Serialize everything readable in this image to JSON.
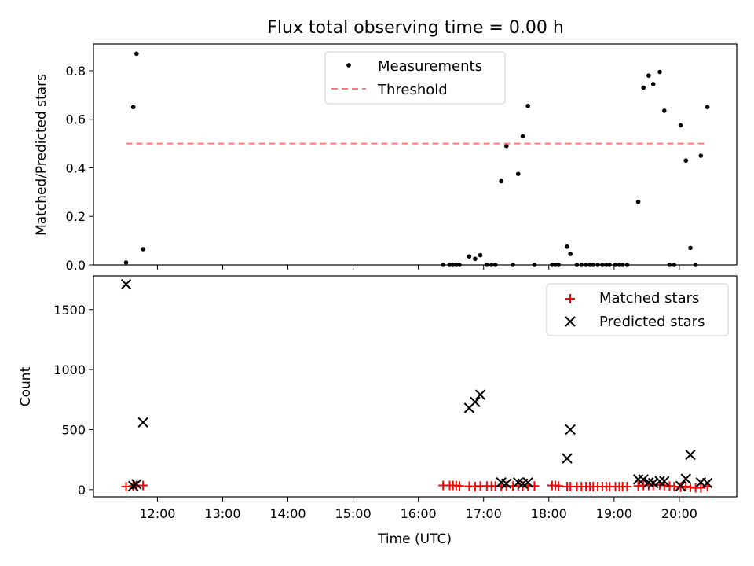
{
  "figure": {
    "title": "Flux total observing time = 0.00 h"
  },
  "chart_data": [
    {
      "type": "scatter",
      "panel": "top",
      "title": "Flux total observing time = 0.00 h",
      "xlabel": "",
      "ylabel": "Matched/Predicted stars",
      "xlim": [
        11.02,
        20.88
      ],
      "ylim": [
        0.0,
        0.91
      ],
      "yticks": [
        0.0,
        0.2,
        0.4,
        0.6,
        0.8
      ],
      "ytick_labels": [
        "0.0",
        "0.2",
        "0.4",
        "0.6",
        "0.8"
      ],
      "xticks": [
        12,
        13,
        14,
        15,
        16,
        17,
        18,
        19,
        20
      ],
      "grid": false,
      "legend_position": "top-center",
      "series": [
        {
          "name": "Measurements",
          "kind": "points",
          "color": "#000000",
          "x": [
            11.52,
            11.63,
            11.68,
            11.78,
            16.38,
            16.48,
            16.53,
            16.58,
            16.63,
            16.78,
            16.87,
            16.95,
            17.05,
            17.12,
            17.18,
            17.27,
            17.35,
            17.45,
            17.53,
            17.6,
            17.68,
            17.78,
            18.05,
            18.1,
            18.15,
            18.28,
            18.33,
            18.43,
            18.5,
            18.57,
            18.63,
            18.68,
            18.75,
            18.82,
            18.88,
            18.93,
            19.02,
            19.08,
            19.13,
            19.2,
            19.37,
            19.45,
            19.53,
            19.6,
            19.7,
            19.77,
            19.85,
            19.92,
            20.02,
            20.1,
            20.17,
            20.25,
            20.33,
            20.43
          ],
          "y": [
            0.01,
            0.65,
            0.87,
            0.065,
            0.0,
            0.0,
            0.0,
            0.0,
            0.0,
            0.035,
            0.025,
            0.04,
            0.0,
            0.0,
            0.0,
            0.345,
            0.49,
            0.0,
            0.375,
            0.53,
            0.655,
            0.0,
            0.0,
            0.0,
            0.0,
            0.075,
            0.045,
            0.0,
            0.0,
            0.0,
            0.0,
            0.0,
            0.0,
            0.0,
            0.0,
            0.0,
            0.0,
            0.0,
            0.0,
            0.0,
            0.26,
            0.73,
            0.78,
            0.745,
            0.795,
            0.635,
            0.0,
            0.0,
            0.575,
            0.43,
            0.07,
            0.0,
            0.45,
            0.65
          ]
        },
        {
          "name": "Threshold",
          "kind": "dashed-line",
          "color": "#ff7a7a",
          "x": [
            11.52,
            20.43
          ],
          "y": [
            0.5,
            0.5
          ]
        }
      ]
    },
    {
      "type": "scatter",
      "panel": "bottom",
      "xlabel": "Time (UTC)",
      "ylabel": "Count",
      "xlim": [
        11.02,
        20.88
      ],
      "ylim": [
        -60,
        1780
      ],
      "yticks": [
        0,
        500,
        1000,
        1500
      ],
      "ytick_labels": [
        "0",
        "500",
        "1000",
        "1500"
      ],
      "xticks": [
        12,
        13,
        14,
        15,
        16,
        17,
        18,
        19,
        20
      ],
      "xtick_labels": [
        "12:00",
        "13:00",
        "14:00",
        "15:00",
        "16:00",
        "17:00",
        "18:00",
        "19:00",
        "20:00"
      ],
      "grid": false,
      "legend_position": "top-right",
      "series": [
        {
          "name": "Matched stars",
          "marker": "plus",
          "color": "#ff0000",
          "x": [
            11.52,
            11.63,
            11.68,
            11.78,
            16.38,
            16.48,
            16.53,
            16.58,
            16.63,
            16.78,
            16.87,
            16.95,
            17.05,
            17.12,
            17.18,
            17.27,
            17.35,
            17.45,
            17.53,
            17.6,
            17.68,
            17.78,
            18.05,
            18.1,
            18.15,
            18.28,
            18.33,
            18.43,
            18.5,
            18.57,
            18.63,
            18.68,
            18.75,
            18.82,
            18.88,
            18.93,
            19.02,
            19.08,
            19.13,
            19.2,
            19.37,
            19.45,
            19.53,
            19.6,
            19.7,
            19.77,
            19.85,
            19.92,
            20.02,
            20.1,
            20.17,
            20.25,
            20.33,
            20.43
          ],
          "y": [
            25,
            30,
            35,
            35,
            35,
            35,
            35,
            35,
            30,
            28,
            25,
            30,
            30,
            30,
            30,
            25,
            30,
            30,
            30,
            30,
            30,
            30,
            35,
            35,
            30,
            25,
            25,
            25,
            25,
            25,
            25,
            25,
            25,
            25,
            25,
            25,
            25,
            25,
            25,
            25,
            30,
            35,
            35,
            35,
            40,
            35,
            30,
            25,
            20,
            25,
            20,
            15,
            15,
            25
          ]
        },
        {
          "name": "Predicted stars",
          "marker": "x",
          "color": "#000000",
          "x": [
            11.52,
            11.63,
            11.68,
            11.78,
            16.78,
            16.87,
            16.95,
            17.27,
            17.35,
            17.53,
            17.6,
            17.68,
            18.28,
            18.33,
            19.37,
            19.45,
            19.53,
            19.6,
            19.7,
            19.77,
            20.02,
            20.1,
            20.17,
            20.33,
            20.43
          ],
          "y": [
            1710,
            30,
            45,
            560,
            680,
            730,
            790,
            60,
            50,
            60,
            50,
            60,
            260,
            500,
            85,
            85,
            60,
            55,
            70,
            70,
            30,
            90,
            290,
            60,
            55
          ]
        }
      ]
    }
  ]
}
